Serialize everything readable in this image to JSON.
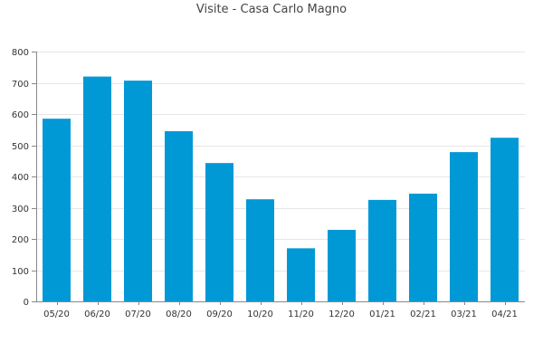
{
  "chart_data": {
    "type": "bar",
    "title": "Visite - Casa Carlo Magno",
    "xlabel": "",
    "ylabel": "",
    "categories": [
      "05/20",
      "06/20",
      "07/20",
      "08/20",
      "09/20",
      "10/20",
      "11/20",
      "12/20",
      "01/21",
      "02/21",
      "03/21",
      "04/21"
    ],
    "values": [
      585,
      720,
      707,
      545,
      443,
      327,
      170,
      229,
      325,
      345,
      478,
      524
    ],
    "ylim": [
      0,
      800
    ],
    "yticks": [
      0,
      100,
      200,
      300,
      400,
      500,
      600,
      700,
      800
    ],
    "grid": true,
    "legend": "none",
    "bar_color": "#0099d6",
    "grid_color": "#e6e6e6",
    "axis_color": "#888888"
  }
}
